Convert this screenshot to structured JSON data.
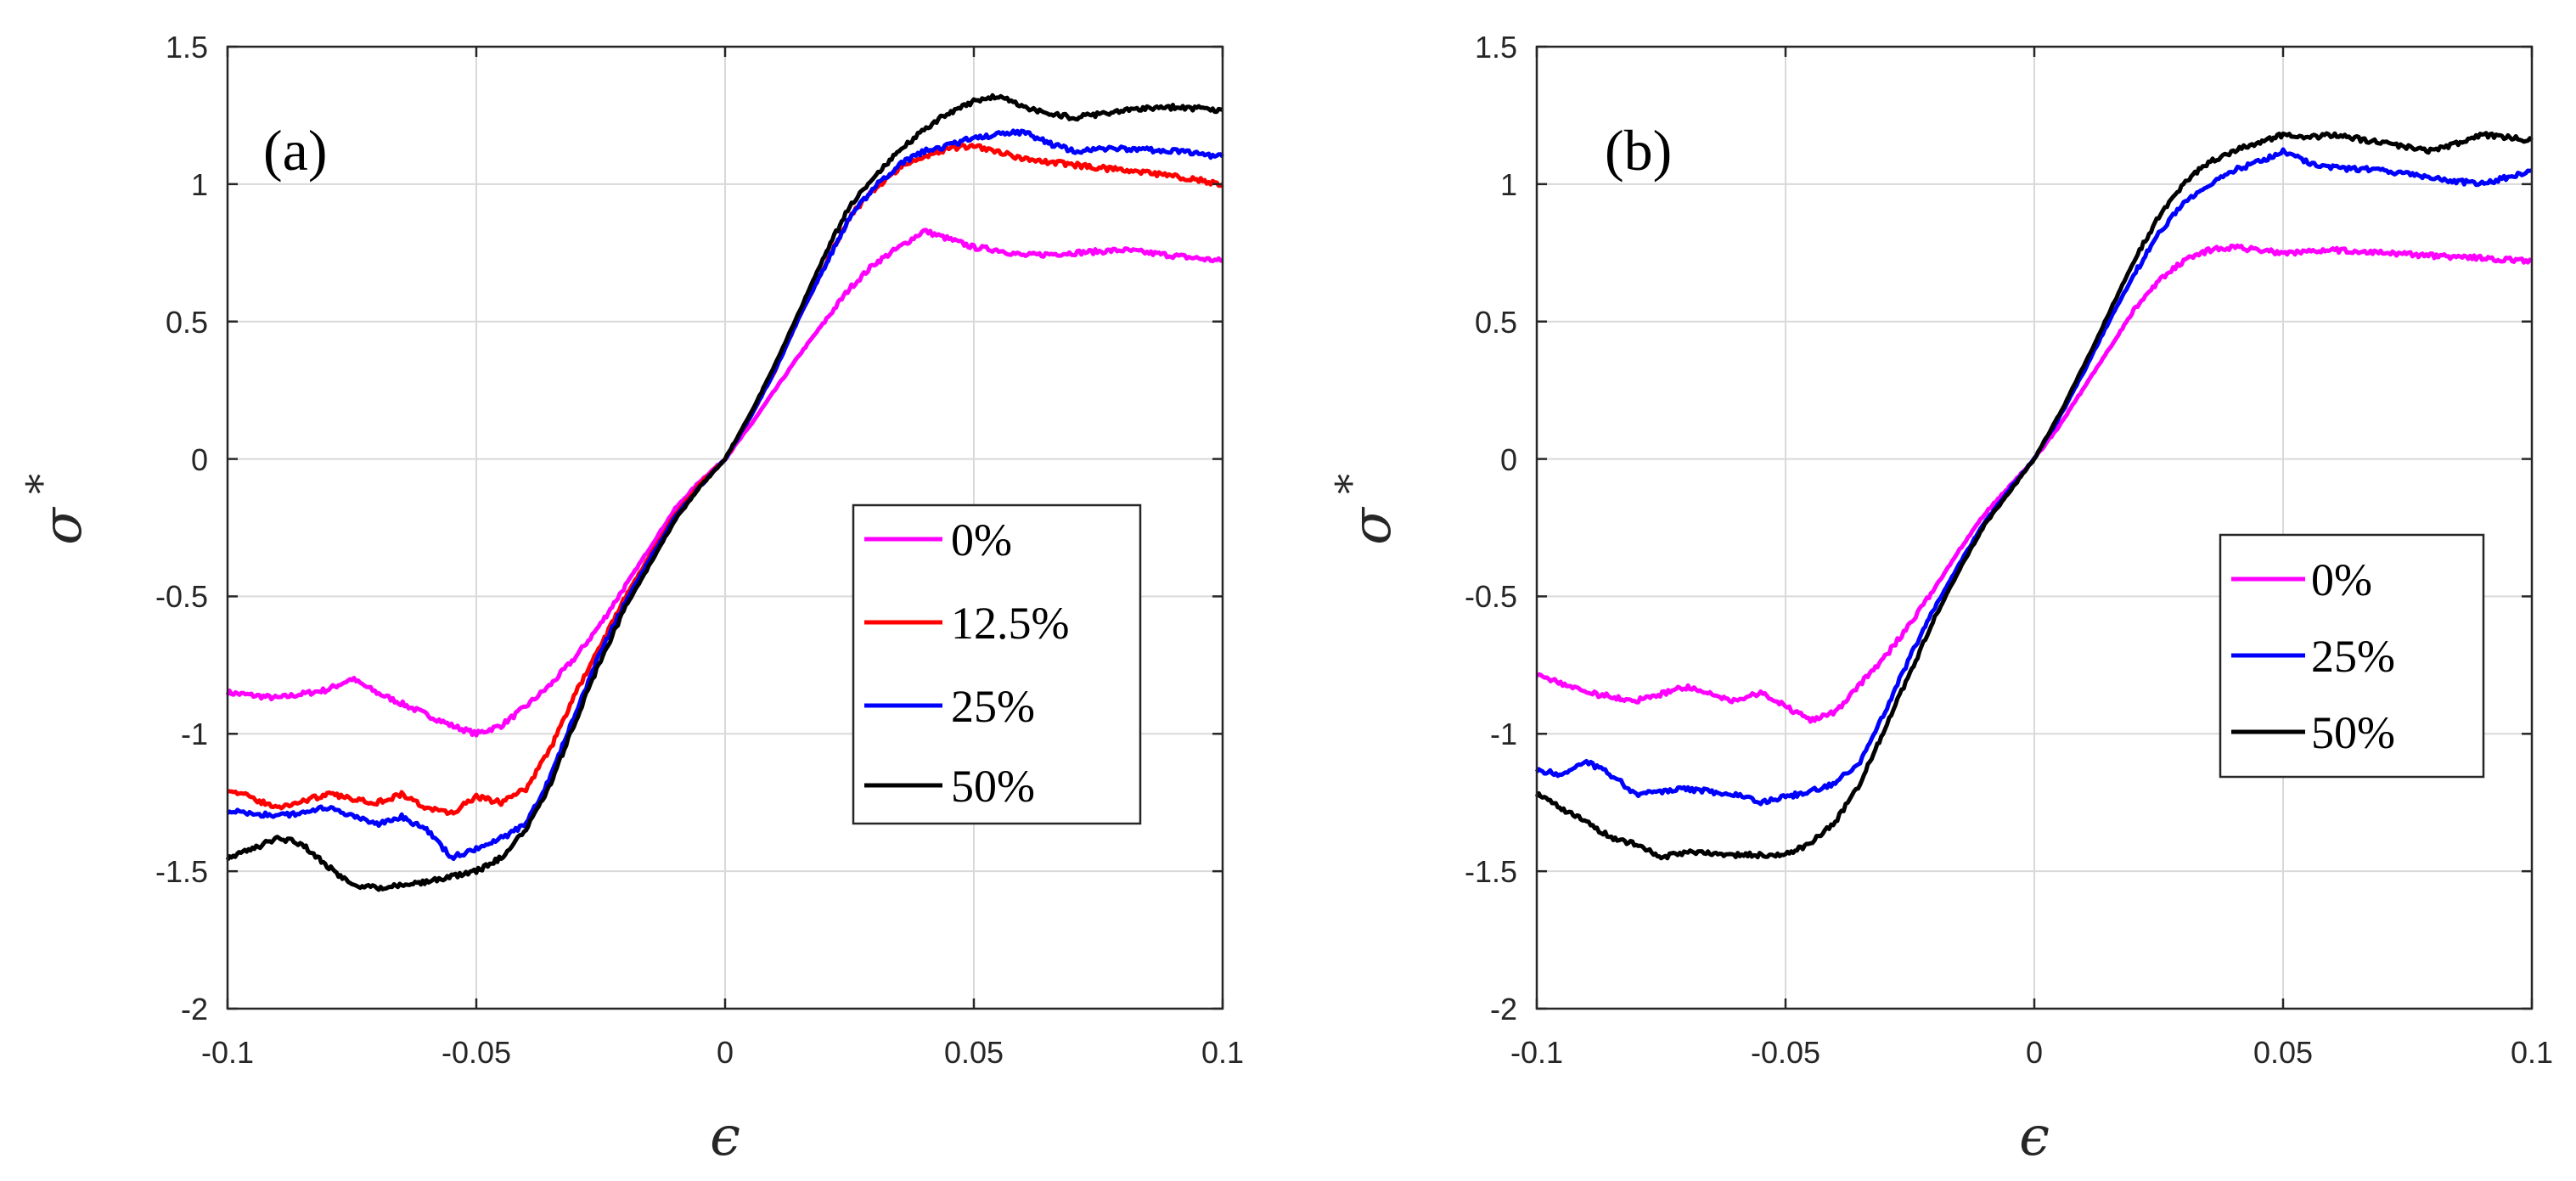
{
  "chart_data": [
    {
      "type": "line",
      "panel_label": "(a)",
      "xlabel": "ϵ",
      "ylabel": "σ",
      "ylabel_superscript": "*",
      "xlim": [
        -0.1,
        0.1
      ],
      "ylim": [
        -2,
        1.5
      ],
      "xticks": [
        -0.1,
        -0.05,
        0,
        0.05,
        0.1
      ],
      "xtick_labels": [
        "-0.1",
        "-0.05",
        "0",
        "0.05",
        "0.1"
      ],
      "yticks": [
        -2,
        -1.5,
        -1,
        -0.5,
        0,
        0.5,
        1,
        1.5
      ],
      "ytick_labels": [
        "-2",
        "-1.5",
        "-1",
        "-0.5",
        "0",
        "0.5",
        "1",
        "1.5"
      ],
      "grid": true,
      "legend_position": "center-right",
      "series": [
        {
          "name": "0%",
          "color": "#ff00ff",
          "x": [
            -0.1,
            -0.09,
            -0.08,
            -0.075,
            -0.07,
            -0.06,
            -0.055,
            -0.05,
            -0.045,
            -0.04,
            -0.035,
            -0.03,
            -0.025,
            -0.02,
            -0.015,
            -0.01,
            -0.005,
            0,
            0.005,
            0.01,
            0.015,
            0.02,
            0.025,
            0.03,
            0.035,
            0.04,
            0.045,
            0.05,
            0.055,
            0.06,
            0.07,
            0.08,
            0.09,
            0.1
          ],
          "y": [
            -0.85,
            -0.87,
            -0.84,
            -0.8,
            -0.85,
            -0.93,
            -0.97,
            -1.0,
            -0.97,
            -0.9,
            -0.82,
            -0.72,
            -0.6,
            -0.46,
            -0.32,
            -0.18,
            -0.08,
            0,
            0.12,
            0.25,
            0.38,
            0.5,
            0.62,
            0.71,
            0.77,
            0.83,
            0.8,
            0.77,
            0.76,
            0.74,
            0.75,
            0.76,
            0.74,
            0.72
          ]
        },
        {
          "name": "12.5%",
          "color": "#ff0000",
          "x": [
            -0.1,
            -0.09,
            -0.08,
            -0.07,
            -0.065,
            -0.06,
            -0.055,
            -0.05,
            -0.045,
            -0.04,
            -0.035,
            -0.03,
            -0.025,
            -0.02,
            -0.015,
            -0.01,
            -0.005,
            0,
            0.005,
            0.01,
            0.015,
            0.02,
            0.025,
            0.03,
            0.035,
            0.04,
            0.045,
            0.05,
            0.055,
            0.06,
            0.07,
            0.08,
            0.09,
            0.1
          ],
          "y": [
            -1.2,
            -1.27,
            -1.22,
            -1.25,
            -1.22,
            -1.27,
            -1.29,
            -1.23,
            -1.25,
            -1.2,
            -1.05,
            -0.85,
            -0.68,
            -0.5,
            -0.35,
            -0.2,
            -0.09,
            0,
            0.15,
            0.32,
            0.52,
            0.7,
            0.88,
            0.98,
            1.06,
            1.1,
            1.13,
            1.14,
            1.12,
            1.09,
            1.07,
            1.05,
            1.03,
            1.0
          ]
        },
        {
          "name": "25%",
          "color": "#0000ff",
          "x": [
            -0.1,
            -0.09,
            -0.08,
            -0.07,
            -0.065,
            -0.06,
            -0.055,
            -0.05,
            -0.045,
            -0.04,
            -0.035,
            -0.03,
            -0.025,
            -0.02,
            -0.015,
            -0.01,
            -0.005,
            0,
            0.005,
            0.01,
            0.015,
            0.02,
            0.025,
            0.03,
            0.035,
            0.04,
            0.045,
            0.05,
            0.055,
            0.06,
            0.065,
            0.07,
            0.08,
            0.09,
            0.1
          ],
          "y": [
            -1.28,
            -1.3,
            -1.27,
            -1.33,
            -1.3,
            -1.35,
            -1.45,
            -1.42,
            -1.38,
            -1.33,
            -1.15,
            -0.92,
            -0.7,
            -0.52,
            -0.36,
            -0.21,
            -0.1,
            0,
            0.15,
            0.32,
            0.52,
            0.7,
            0.88,
            0.99,
            1.07,
            1.12,
            1.14,
            1.17,
            1.18,
            1.19,
            1.15,
            1.12,
            1.13,
            1.12,
            1.1
          ]
        },
        {
          "name": "50%",
          "color": "#000000",
          "x": [
            -0.1,
            -0.095,
            -0.09,
            -0.085,
            -0.08,
            -0.075,
            -0.07,
            -0.065,
            -0.06,
            -0.055,
            -0.05,
            -0.045,
            -0.04,
            -0.035,
            -0.03,
            -0.025,
            -0.02,
            -0.015,
            -0.01,
            -0.005,
            0,
            0.005,
            0.01,
            0.015,
            0.02,
            0.025,
            0.03,
            0.035,
            0.04,
            0.045,
            0.05,
            0.055,
            0.06,
            0.07,
            0.08,
            0.09,
            0.1
          ],
          "y": [
            -1.45,
            -1.42,
            -1.38,
            -1.4,
            -1.48,
            -1.55,
            -1.56,
            -1.55,
            -1.54,
            -1.52,
            -1.5,
            -1.45,
            -1.35,
            -1.18,
            -0.95,
            -0.73,
            -0.54,
            -0.38,
            -0.22,
            -0.1,
            0,
            0.16,
            0.34,
            0.54,
            0.74,
            0.92,
            1.03,
            1.12,
            1.2,
            1.26,
            1.3,
            1.32,
            1.28,
            1.24,
            1.27,
            1.28,
            1.27
          ]
        }
      ]
    },
    {
      "type": "line",
      "panel_label": "(b)",
      "xlabel": "ϵ",
      "ylabel": "σ",
      "ylabel_superscript": "*",
      "xlim": [
        -0.1,
        0.1
      ],
      "ylim": [
        -2,
        1.5
      ],
      "xticks": [
        -0.1,
        -0.05,
        0,
        0.05,
        0.1
      ],
      "xtick_labels": [
        "-0.1",
        "-0.05",
        "0",
        "0.05",
        "0.1"
      ],
      "yticks": [
        -2,
        -1.5,
        -1,
        -0.5,
        0,
        0.5,
        1,
        1.5
      ],
      "ytick_labels": [
        "-2",
        "-1.5",
        "-1",
        "-0.5",
        "0",
        "0.5",
        "1",
        "1.5"
      ],
      "grid": true,
      "legend_position": "center-right",
      "series": [
        {
          "name": "0%",
          "color": "#ff00ff",
          "x": [
            -0.1,
            -0.09,
            -0.08,
            -0.07,
            -0.06,
            -0.055,
            -0.05,
            -0.045,
            -0.04,
            -0.035,
            -0.03,
            -0.025,
            -0.02,
            -0.015,
            -0.01,
            -0.005,
            0,
            0.005,
            0.01,
            0.015,
            0.02,
            0.025,
            0.03,
            0.035,
            0.04,
            0.05,
            0.06,
            0.07,
            0.08,
            0.09,
            0.1
          ],
          "y": [
            -0.78,
            -0.85,
            -0.88,
            -0.83,
            -0.88,
            -0.85,
            -0.9,
            -0.95,
            -0.92,
            -0.82,
            -0.72,
            -0.6,
            -0.47,
            -0.33,
            -0.2,
            -0.1,
            0,
            0.12,
            0.26,
            0.4,
            0.54,
            0.65,
            0.72,
            0.76,
            0.77,
            0.75,
            0.76,
            0.75,
            0.74,
            0.73,
            0.72
          ]
        },
        {
          "name": "25%",
          "color": "#0000ff",
          "x": [
            -0.1,
            -0.095,
            -0.09,
            -0.085,
            -0.08,
            -0.07,
            -0.06,
            -0.055,
            -0.05,
            -0.045,
            -0.04,
            -0.035,
            -0.03,
            -0.025,
            -0.02,
            -0.015,
            -0.01,
            -0.005,
            0,
            0.005,
            0.01,
            0.015,
            0.02,
            0.025,
            0.03,
            0.035,
            0.04,
            0.045,
            0.05,
            0.055,
            0.06,
            0.07,
            0.08,
            0.09,
            0.1
          ],
          "y": [
            -1.13,
            -1.15,
            -1.1,
            -1.15,
            -1.22,
            -1.2,
            -1.22,
            -1.25,
            -1.23,
            -1.21,
            -1.18,
            -1.1,
            -0.92,
            -0.72,
            -0.54,
            -0.38,
            -0.23,
            -0.11,
            0,
            0.15,
            0.32,
            0.5,
            0.67,
            0.82,
            0.93,
            1.0,
            1.05,
            1.08,
            1.12,
            1.08,
            1.06,
            1.05,
            1.02,
            1.0,
            1.05
          ]
        },
        {
          "name": "50%",
          "color": "#000000",
          "x": [
            -0.1,
            -0.095,
            -0.09,
            -0.085,
            -0.08,
            -0.075,
            -0.07,
            -0.06,
            -0.05,
            -0.045,
            -0.04,
            -0.035,
            -0.03,
            -0.025,
            -0.02,
            -0.015,
            -0.01,
            -0.005,
            0,
            0.005,
            0.01,
            0.015,
            0.02,
            0.025,
            0.03,
            0.035,
            0.04,
            0.045,
            0.05,
            0.055,
            0.06,
            0.07,
            0.08,
            0.09,
            0.1
          ],
          "y": [
            -1.22,
            -1.27,
            -1.32,
            -1.38,
            -1.4,
            -1.45,
            -1.43,
            -1.44,
            -1.44,
            -1.4,
            -1.32,
            -1.18,
            -0.98,
            -0.78,
            -0.58,
            -0.4,
            -0.24,
            -0.12,
            0,
            0.16,
            0.34,
            0.53,
            0.72,
            0.88,
            1.0,
            1.08,
            1.12,
            1.15,
            1.18,
            1.17,
            1.18,
            1.15,
            1.12,
            1.18,
            1.16
          ]
        }
      ]
    }
  ]
}
